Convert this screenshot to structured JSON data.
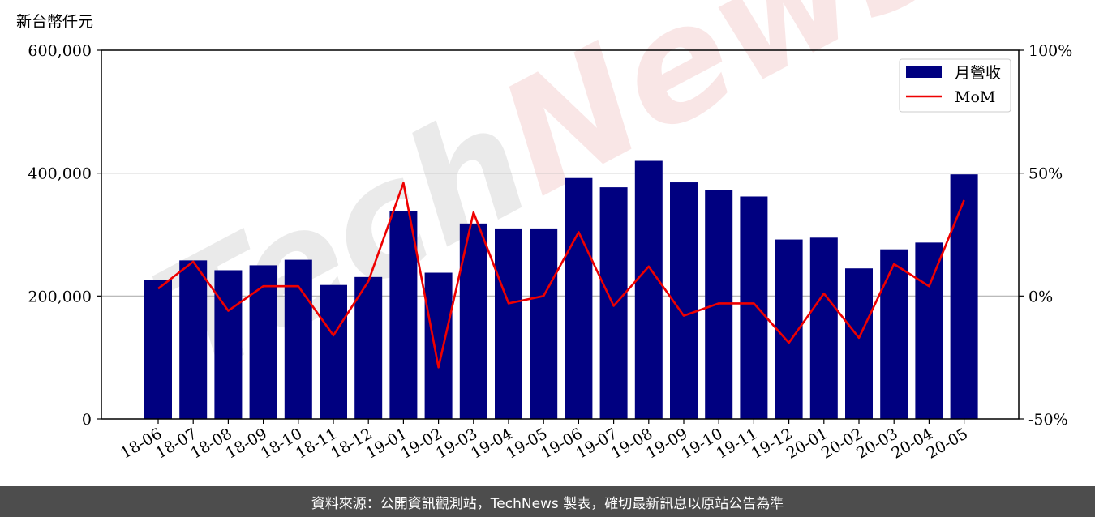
{
  "chart_data": {
    "type": "bar",
    "title": "",
    "ylabel": "新台幣仟元",
    "ylim": [
      0,
      600000
    ],
    "yticks": [
      "0",
      "200,000",
      "400,000",
      "600,000"
    ],
    "y2lim": [
      -50,
      100
    ],
    "y2ticks": [
      "-50%",
      "0%",
      "50%",
      "100%"
    ],
    "grid": "horizontal",
    "legend_position": "top-right",
    "watermark": "TechNews",
    "categories": [
      "18-06",
      "18-07",
      "18-08",
      "18-09",
      "18-10",
      "18-11",
      "18-12",
      "19-01",
      "19-02",
      "19-03",
      "19-04",
      "19-05",
      "19-06",
      "19-07",
      "19-08",
      "19-09",
      "19-10",
      "19-11",
      "19-12",
      "20-01",
      "20-02",
      "20-03",
      "20-04",
      "20-05"
    ],
    "series": [
      {
        "name": "月營收",
        "kind": "bar",
        "axis": "left",
        "color": "#000080",
        "values": [
          226000,
          258000,
          242000,
          250000,
          259000,
          218000,
          231000,
          338000,
          238000,
          318000,
          310000,
          310000,
          392000,
          377000,
          420000,
          385000,
          372000,
          362000,
          292000,
          295000,
          245000,
          276000,
          287000,
          398000
        ]
      },
      {
        "name": "MoM",
        "kind": "line",
        "axis": "right",
        "color": "#ee0000",
        "values": [
          3,
          14,
          -6,
          4,
          4,
          -16,
          6,
          46,
          -29,
          34,
          -3,
          0,
          26,
          -4,
          12,
          -8,
          -3,
          -3,
          -19,
          1,
          -17,
          13,
          4,
          39
        ]
      }
    ]
  },
  "footer": {
    "text": "資料來源：公開資訊觀測站，TechNews 製表，確切最新訊息以原站公告為準"
  }
}
